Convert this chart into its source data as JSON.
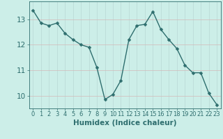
{
  "x": [
    0,
    1,
    2,
    3,
    4,
    5,
    6,
    7,
    8,
    9,
    10,
    11,
    12,
    13,
    14,
    15,
    16,
    17,
    18,
    19,
    20,
    21,
    22,
    23
  ],
  "y": [
    13.35,
    12.85,
    12.75,
    12.85,
    12.45,
    12.2,
    12.0,
    11.9,
    11.1,
    9.85,
    10.05,
    10.6,
    12.2,
    12.75,
    12.8,
    13.3,
    12.6,
    12.2,
    11.85,
    11.2,
    10.9,
    10.9,
    10.1,
    9.65
  ],
  "line_color": "#2e6e6e",
  "marker": "D",
  "marker_size": 2.5,
  "bg_color": "#cceee8",
  "grid_v_color": "#b8d8d4",
  "grid_h_color": "#d4b8b8",
  "xlabel": "Humidex (Indice chaleur)",
  "ylim": [
    9.5,
    13.7
  ],
  "xlim": [
    -0.5,
    23.5
  ],
  "yticks": [
    10,
    11,
    12,
    13
  ],
  "xticks": [
    0,
    1,
    2,
    3,
    4,
    5,
    6,
    7,
    8,
    9,
    10,
    11,
    12,
    13,
    14,
    15,
    16,
    17,
    18,
    19,
    20,
    21,
    22,
    23
  ],
  "tick_color": "#2e6e6e",
  "label_color": "#2e6e6e",
  "xlabel_fontsize": 7.5,
  "ytick_fontsize": 7.5,
  "xtick_fontsize": 6.0,
  "line_width": 1.0
}
